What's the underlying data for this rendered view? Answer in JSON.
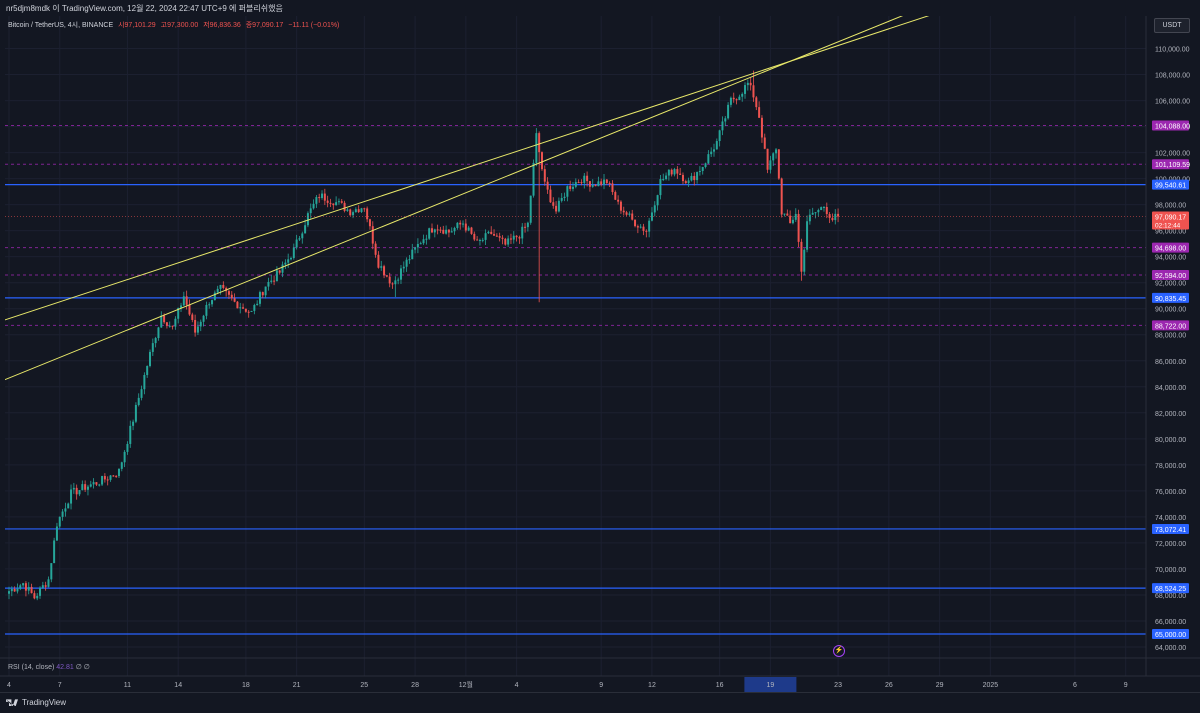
{
  "header": {
    "publisher": "nr5djm8mdk 이 TradingView.com, 12월 22, 2024 22:47 UTC+9 에 퍼블리쉬했음"
  },
  "symbol": {
    "title": "Bitcoin / TetherUS, 4시, BINANCE",
    "open": "시97,101.29",
    "high": "고97,300.00",
    "low": "저96,836.36",
    "close": "종97,090.17",
    "change": "−11.11 (−0.01%)"
  },
  "currency": "USDT",
  "rsi": {
    "label": "RSI (14, close)",
    "value": "42.81",
    "extra": "∅ ∅"
  },
  "footer": {
    "brand": "TradingView"
  },
  "colors": {
    "background": "#131722",
    "up": "#26a69a",
    "down": "#ef5350",
    "trendline": "#e8e86a",
    "hline_blue": "#2962ff",
    "hline_pink": "#9c27b0"
  },
  "chart_data": {
    "type": "candlestick",
    "timeframe": "4h",
    "ylim": [
      63000,
      112500
    ],
    "y_ticks": [
      64000,
      66000,
      68000,
      70000,
      72000,
      74000,
      76000,
      78000,
      80000,
      82000,
      84000,
      86000,
      88000,
      90000,
      92000,
      94000,
      96000,
      98000,
      100000,
      102000,
      104000,
      106000,
      108000,
      110000
    ],
    "y_tick_labels": [
      "64,000.00",
      "66,000.00",
      "68,000.00",
      "70,000.00",
      "72,000.00",
      "74,000.00",
      "76,000.00",
      "78,000.00",
      "80,000.00",
      "82,000.00",
      "84,000.00",
      "86,000.00",
      "88,000.00",
      "90,000.00",
      "92,000.00",
      "94,000.00",
      "96,000.00",
      "98,000.00",
      "100,000.00",
      "102,000.00",
      "104,000.00",
      "106,000.00",
      "108,000.00",
      "110,000.00"
    ],
    "x_labels": [
      {
        "label": "4",
        "bar": 0
      },
      {
        "label": "7",
        "bar": 18
      },
      {
        "label": "11",
        "bar": 42
      },
      {
        "label": "14",
        "bar": 60
      },
      {
        "label": "18",
        "bar": 84
      },
      {
        "label": "21",
        "bar": 102
      },
      {
        "label": "25",
        "bar": 126
      },
      {
        "label": "28",
        "bar": 144
      },
      {
        "label": "12월",
        "bar": 162
      },
      {
        "label": "4",
        "bar": 180
      },
      {
        "label": "9",
        "bar": 210
      },
      {
        "label": "12",
        "bar": 228
      },
      {
        "label": "16",
        "bar": 252
      },
      {
        "label": "19",
        "bar": 270
      },
      {
        "label": "23",
        "bar": 294
      },
      {
        "label": "26",
        "bar": 312
      },
      {
        "label": "29",
        "bar": 330
      },
      {
        "label": "2025",
        "bar": 348
      },
      {
        "label": "6",
        "bar": 378
      },
      {
        "label": "9",
        "bar": 396
      }
    ],
    "horizontal_levels": [
      {
        "value": 99540.61,
        "label": "99,540.61",
        "style": "blue"
      },
      {
        "value": 90835.45,
        "label": "90,835.45",
        "style": "blue"
      },
      {
        "value": 73072.41,
        "label": "73,072.41",
        "style": "blue"
      },
      {
        "value": 68524.25,
        "label": "68,524.25",
        "style": "blue"
      },
      {
        "value": 65000.0,
        "label": "65,000.00",
        "style": "blue"
      },
      {
        "value": 104088.0,
        "label": "104,088.00",
        "style": "pink"
      },
      {
        "value": 101109.59,
        "label": "101,109.59",
        "style": "pink"
      },
      {
        "value": 94698.0,
        "label": "94,698.00",
        "style": "pink"
      },
      {
        "value": 92594.0,
        "label": "92,594.00",
        "style": "pink"
      },
      {
        "value": 88722.0,
        "label": "88,722.00",
        "style": "pink"
      }
    ],
    "last_price": {
      "value": 97090.17,
      "label": "97,090.17",
      "countdown": "02:12:44"
    },
    "trendlines": [
      {
        "from": {
          "bar": -2,
          "price": 89100
        },
        "to": {
          "bar": 330,
          "price": 112800
        }
      },
      {
        "from": {
          "bar": -2,
          "price": 84500
        },
        "to": {
          "bar": 320,
          "price": 112800
        }
      }
    ],
    "anchors": [
      {
        "bar": 0,
        "price": 68300
      },
      {
        "bar": 5,
        "price": 68900
      },
      {
        "bar": 9,
        "price": 67800
      },
      {
        "bar": 14,
        "price": 69200
      },
      {
        "bar": 17,
        "price": 73500
      },
      {
        "bar": 22,
        "price": 75800
      },
      {
        "bar": 27,
        "price": 76300
      },
      {
        "bar": 33,
        "price": 76800
      },
      {
        "bar": 39,
        "price": 77500
      },
      {
        "bar": 44,
        "price": 81500
      },
      {
        "bar": 50,
        "price": 86500
      },
      {
        "bar": 54,
        "price": 89500
      },
      {
        "bar": 58,
        "price": 88500
      },
      {
        "bar": 62,
        "price": 91000
      },
      {
        "bar": 66,
        "price": 88200
      },
      {
        "bar": 71,
        "price": 90600
      },
      {
        "bar": 75,
        "price": 91500
      },
      {
        "bar": 80,
        "price": 90500
      },
      {
        "bar": 86,
        "price": 89700
      },
      {
        "bar": 91,
        "price": 91800
      },
      {
        "bar": 96,
        "price": 92800
      },
      {
        "bar": 101,
        "price": 94500
      },
      {
        "bar": 106,
        "price": 97200
      },
      {
        "bar": 110,
        "price": 98700
      },
      {
        "bar": 115,
        "price": 98300
      },
      {
        "bar": 121,
        "price": 97500
      },
      {
        "bar": 126,
        "price": 97900
      },
      {
        "bar": 131,
        "price": 93500
      },
      {
        "bar": 136,
        "price": 91900
      },
      {
        "bar": 141,
        "price": 93600
      },
      {
        "bar": 146,
        "price": 95200
      },
      {
        "bar": 151,
        "price": 96400
      },
      {
        "bar": 156,
        "price": 95900
      },
      {
        "bar": 161,
        "price": 96600
      },
      {
        "bar": 166,
        "price": 95000
      },
      {
        "bar": 171,
        "price": 95800
      },
      {
        "bar": 176,
        "price": 94900
      },
      {
        "bar": 181,
        "price": 95700
      },
      {
        "bar": 184,
        "price": 96500
      },
      {
        "bar": 187,
        "price": 103300
      },
      {
        "bar": 190,
        "price": 99500
      },
      {
        "bar": 194,
        "price": 97500
      },
      {
        "bar": 198,
        "price": 99300
      },
      {
        "bar": 203,
        "price": 100000
      },
      {
        "bar": 207,
        "price": 99600
      },
      {
        "bar": 212,
        "price": 99800
      },
      {
        "bar": 216,
        "price": 98000
      },
      {
        "bar": 221,
        "price": 96800
      },
      {
        "bar": 226,
        "price": 96000
      },
      {
        "bar": 231,
        "price": 99800
      },
      {
        "bar": 236,
        "price": 100800
      },
      {
        "bar": 241,
        "price": 99700
      },
      {
        "bar": 246,
        "price": 101000
      },
      {
        "bar": 251,
        "price": 102800
      },
      {
        "bar": 256,
        "price": 106000
      },
      {
        "bar": 259,
        "price": 106500
      },
      {
        "bar": 262,
        "price": 107300
      },
      {
        "bar": 264,
        "price": 106400
      },
      {
        "bar": 266,
        "price": 104800
      },
      {
        "bar": 269,
        "price": 100600
      },
      {
        "bar": 272,
        "price": 102400
      },
      {
        "bar": 274,
        "price": 97500
      },
      {
        "bar": 277,
        "price": 96500
      },
      {
        "bar": 279,
        "price": 97400
      },
      {
        "bar": 281,
        "price": 92800
      },
      {
        "bar": 283,
        "price": 96800
      },
      {
        "bar": 286,
        "price": 97400
      },
      {
        "bar": 289,
        "price": 97900
      },
      {
        "bar": 292,
        "price": 96900
      },
      {
        "bar": 294,
        "price": 97090
      }
    ],
    "notable_wicks": [
      {
        "bar": 188,
        "low": 90500
      },
      {
        "bar": 264,
        "high": 108300
      },
      {
        "bar": 281,
        "low": 92150
      },
      {
        "bar": 137,
        "low": 90900
      }
    ]
  }
}
